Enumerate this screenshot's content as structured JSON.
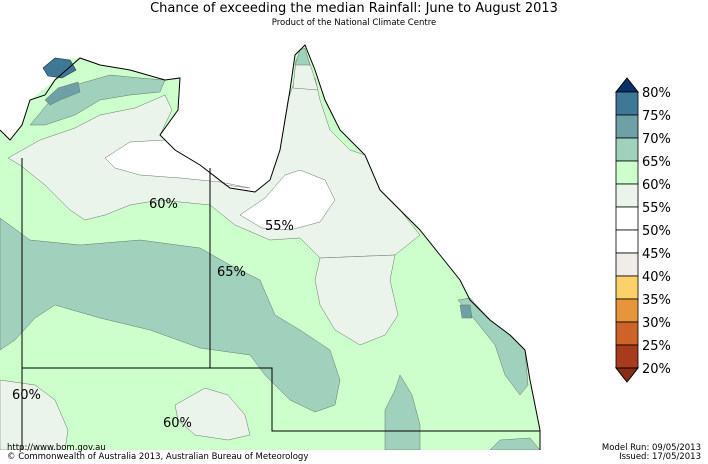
{
  "header": {
    "title": "Chance of exceeding the median Rainfall: June to August 2013",
    "subtitle": "Product of the National Climate Centre"
  },
  "map_labels": [
    "60%",
    "55%",
    "65%",
    "60%",
    "60%"
  ],
  "legend": {
    "levels": [
      "80%",
      "75%",
      "70%",
      "65%",
      "60%",
      "55%",
      "50%",
      "45%",
      "40%",
      "35%",
      "30%",
      "25%",
      "20%"
    ],
    "colors": [
      "#08306b",
      "#3f7797",
      "#6ea0a8",
      "#9fd1bc",
      "#ccffcc",
      "#eaf4ea",
      "#ffffff",
      "#ffffff",
      "#f0ede8",
      "#fdd06a",
      "#e7953a",
      "#cd6328",
      "#a83b1d"
    ]
  },
  "footer": {
    "url": "http://www.bom.gov.au",
    "copyright": "©  Commonwealth of Australia 2013, Australian Bureau of Meteorology",
    "model_run": "Model Run: 09/05/2013",
    "issued": "Issued: 17/05/2013"
  }
}
